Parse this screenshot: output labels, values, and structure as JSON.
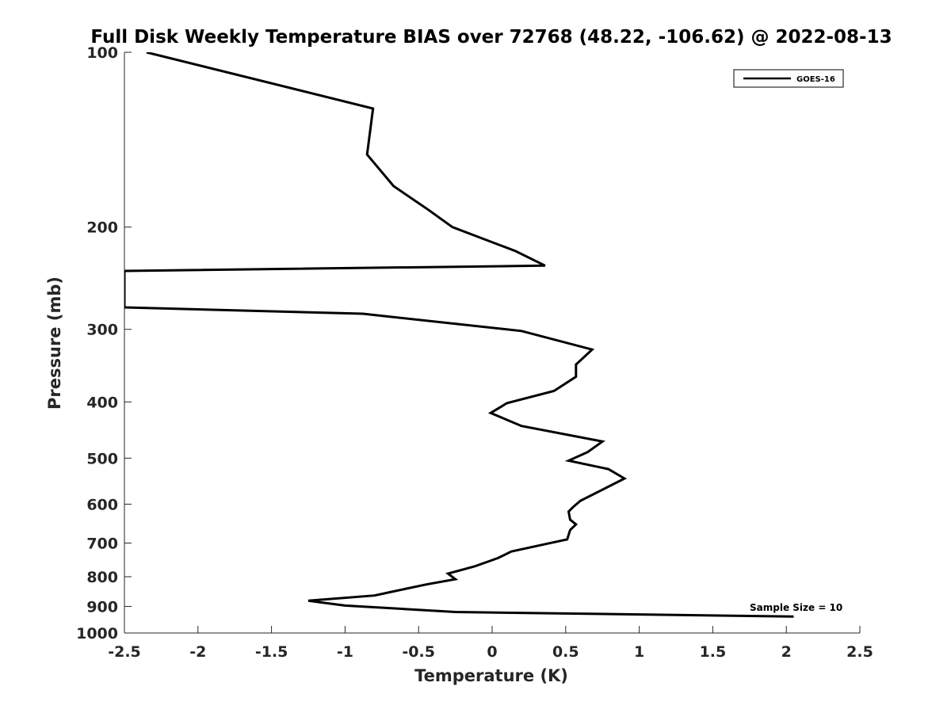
{
  "chart_data": {
    "type": "line",
    "title": "Full Disk Weekly Temperature BIAS over 72768 (48.22, -106.62) @ 2022-08-13",
    "xlabel": "Temperature (K)",
    "ylabel": "Pressure (mb)",
    "xlim": [
      -2.5,
      2.5
    ],
    "ylim": [
      100,
      1000
    ],
    "y_scale": "log",
    "y_reversed": true,
    "grid": false,
    "legend_position": "top-right",
    "x_ticks": [
      -2.5,
      -2,
      -1.5,
      -1,
      -0.5,
      0,
      0.5,
      1,
      1.5,
      2,
      2.5
    ],
    "x_tick_labels": [
      "-2.5",
      "-2",
      "-1.5",
      "-1",
      "-0.5",
      "0",
      "0.5",
      "1",
      "1.5",
      "2",
      "2.5"
    ],
    "y_ticks": [
      100,
      200,
      300,
      400,
      500,
      600,
      700,
      800,
      900,
      1000
    ],
    "y_tick_labels": [
      "100",
      "200",
      "300",
      "400",
      "500",
      "600",
      "700",
      "800",
      "900",
      "1000"
    ],
    "annotation": "Sample Size = 10",
    "series": [
      {
        "name": "GOES-16",
        "color": "#000000",
        "points": [
          {
            "x": -2.35,
            "p": 100
          },
          {
            "x": -0.81,
            "p": 125
          },
          {
            "x": -0.85,
            "p": 150
          },
          {
            "x": -0.67,
            "p": 170
          },
          {
            "x": -0.43,
            "p": 187
          },
          {
            "x": -0.27,
            "p": 200
          },
          {
            "x": 0.16,
            "p": 220
          },
          {
            "x": 0.36,
            "p": 233
          },
          {
            "x": -2.5,
            "p": 238
          },
          {
            "x": -2.5,
            "p": 275
          },
          {
            "x": -0.88,
            "p": 282
          },
          {
            "x": 0.2,
            "p": 302
          },
          {
            "x": 0.68,
            "p": 325
          },
          {
            "x": 0.57,
            "p": 345
          },
          {
            "x": 0.57,
            "p": 362
          },
          {
            "x": 0.42,
            "p": 383
          },
          {
            "x": 0.1,
            "p": 402
          },
          {
            "x": -0.01,
            "p": 418
          },
          {
            "x": 0.2,
            "p": 440
          },
          {
            "x": 0.75,
            "p": 468
          },
          {
            "x": 0.65,
            "p": 488
          },
          {
            "x": 0.52,
            "p": 505
          },
          {
            "x": 0.79,
            "p": 522
          },
          {
            "x": 0.9,
            "p": 542
          },
          {
            "x": 0.6,
            "p": 592
          },
          {
            "x": 0.55,
            "p": 607
          },
          {
            "x": 0.52,
            "p": 618
          },
          {
            "x": 0.53,
            "p": 638
          },
          {
            "x": 0.57,
            "p": 650
          },
          {
            "x": 0.53,
            "p": 665
          },
          {
            "x": 0.51,
            "p": 690
          },
          {
            "x": 0.34,
            "p": 705
          },
          {
            "x": 0.13,
            "p": 724
          },
          {
            "x": 0.04,
            "p": 743
          },
          {
            "x": -0.12,
            "p": 768
          },
          {
            "x": -0.3,
            "p": 790
          },
          {
            "x": -0.25,
            "p": 808
          },
          {
            "x": -0.45,
            "p": 825
          },
          {
            "x": -0.67,
            "p": 848
          },
          {
            "x": -0.8,
            "p": 862
          },
          {
            "x": -1.25,
            "p": 880
          },
          {
            "x": -1.0,
            "p": 897
          },
          {
            "x": -0.25,
            "p": 920
          },
          {
            "x": 2.05,
            "p": 937
          }
        ]
      }
    ]
  }
}
